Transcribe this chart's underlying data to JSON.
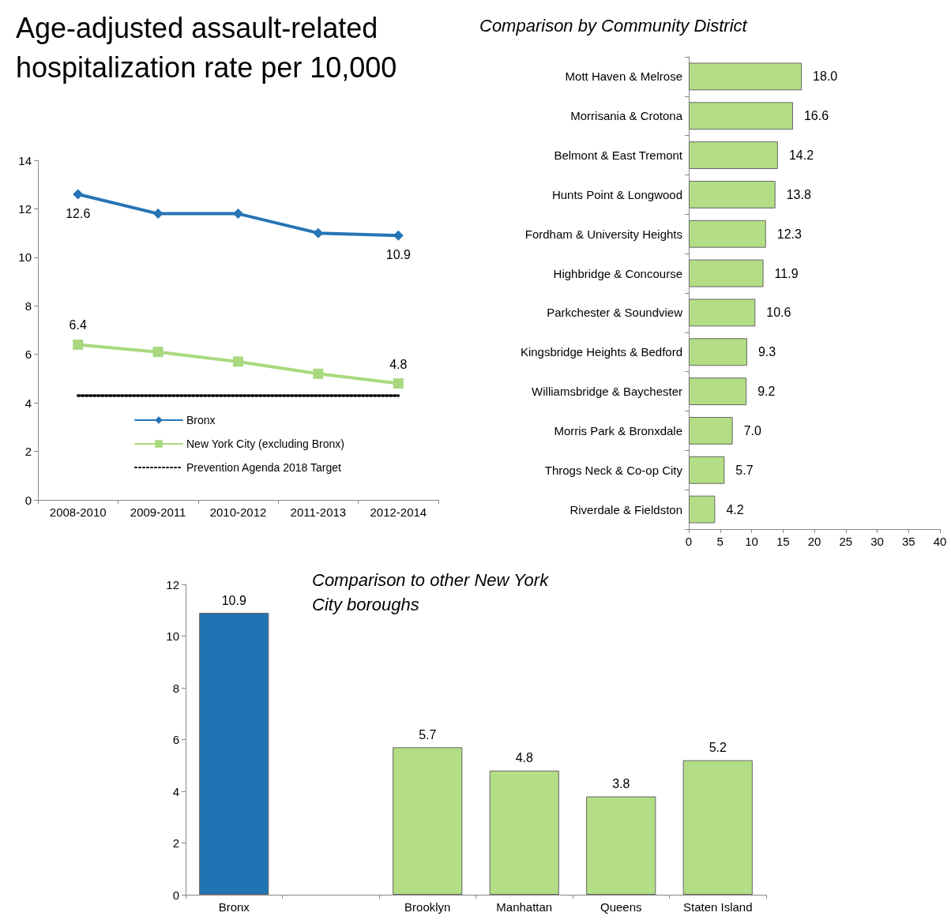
{
  "chart_data": [
    {
      "type": "line",
      "title": "Age-adjusted assault-related hospitalization rate per 10,000",
      "categories": [
        "2008-2010",
        "2009-2011",
        "2010-2012",
        "2011-2013",
        "2012-2014"
      ],
      "series": [
        {
          "name": "Bronx",
          "color": "#2674b5",
          "values": [
            12.6,
            11.8,
            11.8,
            11.0,
            10.9
          ],
          "marker": "diamond",
          "line_style": "solid",
          "value_labels": [
            "12.6",
            null,
            null,
            null,
            "10.9"
          ]
        },
        {
          "name": "New York City (excluding Bronx)",
          "color": "#a9d97e",
          "values": [
            6.4,
            6.1,
            5.7,
            5.2,
            4.8
          ],
          "marker": "square",
          "line_style": "solid",
          "value_labels": [
            "6.4",
            null,
            null,
            null,
            "4.8"
          ]
        },
        {
          "name": "Prevention Agenda 2018 Target",
          "color": "#000000",
          "values": [
            4.3,
            4.3,
            4.3,
            4.3,
            4.3
          ],
          "marker": "none",
          "line_style": "dotted"
        }
      ],
      "ylim": [
        0,
        14
      ],
      "yticks": [
        0,
        2,
        4,
        6,
        8,
        10,
        12,
        14
      ],
      "grid": false,
      "legend": "bottom left"
    },
    {
      "type": "bar",
      "orientation": "horizontal",
      "title": "Comparison by Community District",
      "categories": [
        "Mott Haven & Melrose",
        "Morrisania & Crotona",
        "Belmont & East Tremont",
        "Hunts Point & Longwood",
        "Fordham & University Heights",
        "Highbridge & Concourse",
        "Parkchester & Soundview",
        "Kingsbridge Heights & Bedford",
        "Williamsbridge & Baychester",
        "Morris Park & Bronxdale",
        "Throgs Neck & Co-op City",
        "Riverdale & Fieldston"
      ],
      "values": [
        18.0,
        16.6,
        14.2,
        13.8,
        12.3,
        11.9,
        10.6,
        9.3,
        9.2,
        7.0,
        5.7,
        4.2
      ],
      "color": "#b3de85",
      "xlim": [
        0,
        40
      ],
      "xticks": [
        0,
        5,
        10,
        15,
        20,
        25,
        30,
        35,
        40
      ],
      "grid": false,
      "data_labels": true,
      "value_labels": [
        "18.0",
        "16.6",
        "14.2",
        "13.8",
        "12.3",
        "11.9",
        "10.6",
        "9.3",
        "9.2",
        "7.0",
        "5.7",
        "4.2"
      ]
    },
    {
      "type": "bar",
      "title": "Comparison to other New York City boroughs",
      "categories": [
        "Bronx",
        null,
        "Brooklyn",
        "Manhattan",
        "Queens",
        "Staten Island"
      ],
      "values": [
        10.9,
        null,
        5.7,
        4.8,
        3.8,
        5.2
      ],
      "colors": [
        "#2174b3",
        null,
        "#b3de85",
        "#b3de85",
        "#b3de85",
        "#b3de85"
      ],
      "ylim": [
        0,
        12
      ],
      "yticks": [
        0,
        2,
        4,
        6,
        8,
        10,
        12
      ],
      "grid": false,
      "data_labels": true
    }
  ]
}
